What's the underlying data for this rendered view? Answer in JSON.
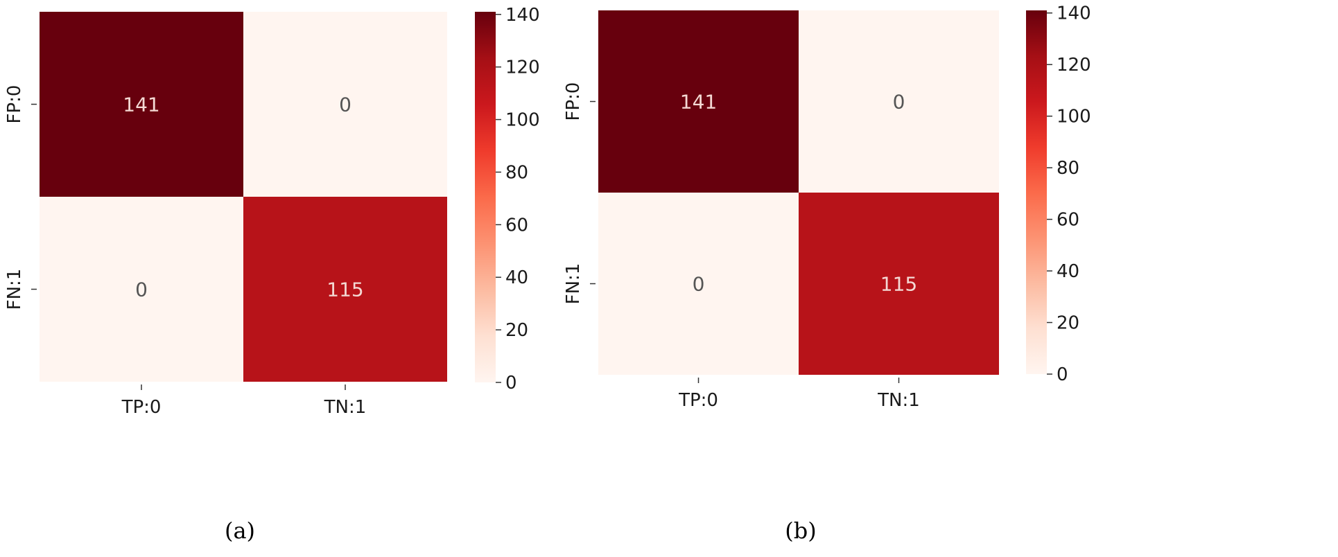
{
  "chart_data": [
    {
      "type": "heatmap",
      "caption": "(a)",
      "x_categories": [
        "TP:0",
        "TN:1"
      ],
      "y_categories": [
        "FP:0",
        "FN:1"
      ],
      "matrix": [
        [
          141,
          0
        ],
        [
          0,
          115
        ]
      ],
      "colorbar": {
        "range": [
          0,
          141
        ],
        "ticks": [
          0,
          20,
          40,
          60,
          80,
          100,
          120,
          140
        ],
        "colormap": "Reds"
      }
    },
    {
      "type": "heatmap",
      "caption": "(b)",
      "x_categories": [
        "TP:0",
        "TN:1"
      ],
      "y_categories": [
        "FP:0",
        "FN:1"
      ],
      "matrix": [
        [
          141,
          0
        ],
        [
          0,
          115
        ]
      ],
      "colorbar": {
        "range": [
          0,
          141
        ],
        "ticks": [
          0,
          20,
          40,
          60,
          80,
          100,
          120,
          140
        ],
        "colormap": "Reds"
      }
    }
  ]
}
